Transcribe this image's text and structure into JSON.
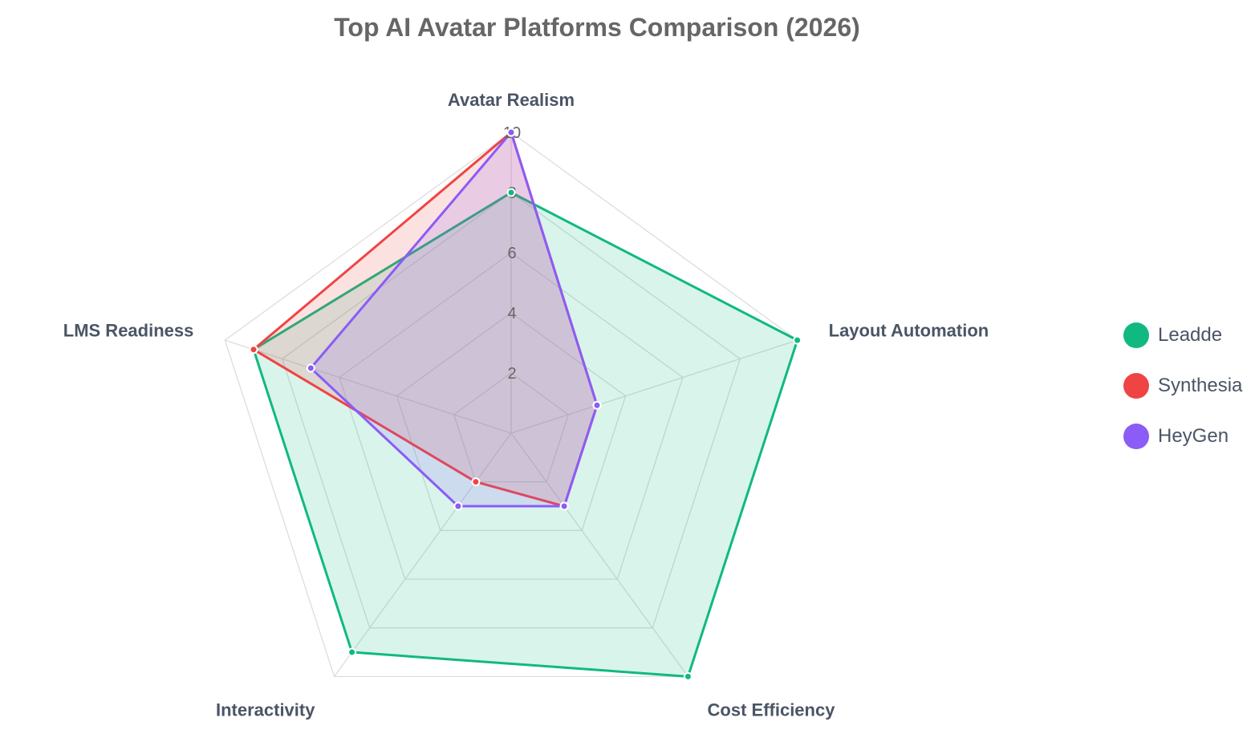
{
  "chart_data": {
    "type": "radar",
    "title": "Top AI Avatar Platforms Comparison (2026)",
    "axes": [
      "Avatar Realism",
      "Layout Automation",
      "Cost Efficiency",
      "Interactivity",
      "LMS Readiness"
    ],
    "r_range": [
      0,
      10
    ],
    "ticks": [
      "2",
      "4",
      "6",
      "8",
      "10"
    ],
    "grid": true,
    "legend_position": "right",
    "series": [
      {
        "name": "Leadde",
        "color": "#10b981",
        "fill": "rgba(16,185,129,0.16)",
        "values": [
          8,
          10,
          10,
          9,
          9
        ]
      },
      {
        "name": "Synthesia",
        "color": "#ef4444",
        "fill": "rgba(239,68,68,0.16)",
        "values": [
          10,
          3,
          3,
          2,
          9
        ]
      },
      {
        "name": "HeyGen",
        "color": "#8b5cf6",
        "fill": "rgba(139,92,246,0.16)",
        "values": [
          10,
          3,
          3,
          3,
          7
        ]
      }
    ]
  }
}
